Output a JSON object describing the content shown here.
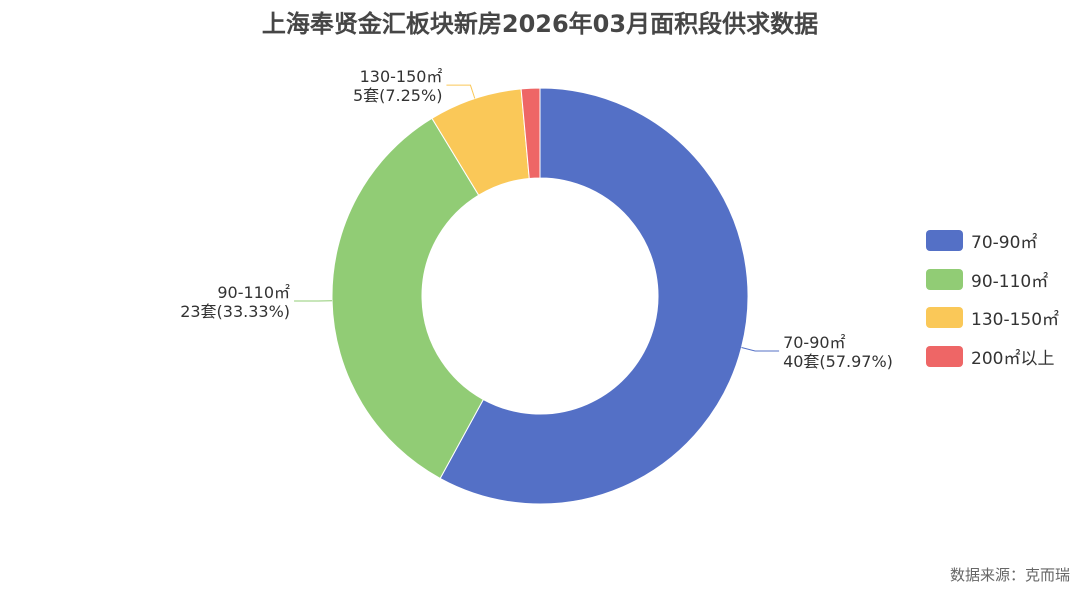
{
  "chart_data": {
    "type": "pie",
    "title": "上海奉贤金汇板块新房2026年03月面积段供求数据",
    "categories": [
      "70-90㎡",
      "90-110㎡",
      "130-150㎡",
      "200㎡以上"
    ],
    "values": [
      40,
      23,
      5,
      1
    ],
    "percent": [
      57.97,
      33.33,
      7.25,
      1.45
    ],
    "data_labels": [
      {
        "line1": "70-90㎡",
        "line2": "40套(57.97%)"
      },
      {
        "line1": "90-110㎡",
        "line2": "23套(33.33%)"
      },
      {
        "line1": "130-150㎡",
        "line2": "5套(7.25%)"
      },
      null
    ],
    "colors": [
      "#5470c6",
      "#91cc75",
      "#fac858",
      "#ee6666"
    ],
    "legend_position": "right",
    "donut": true
  },
  "source": "数据来源：克而瑞"
}
